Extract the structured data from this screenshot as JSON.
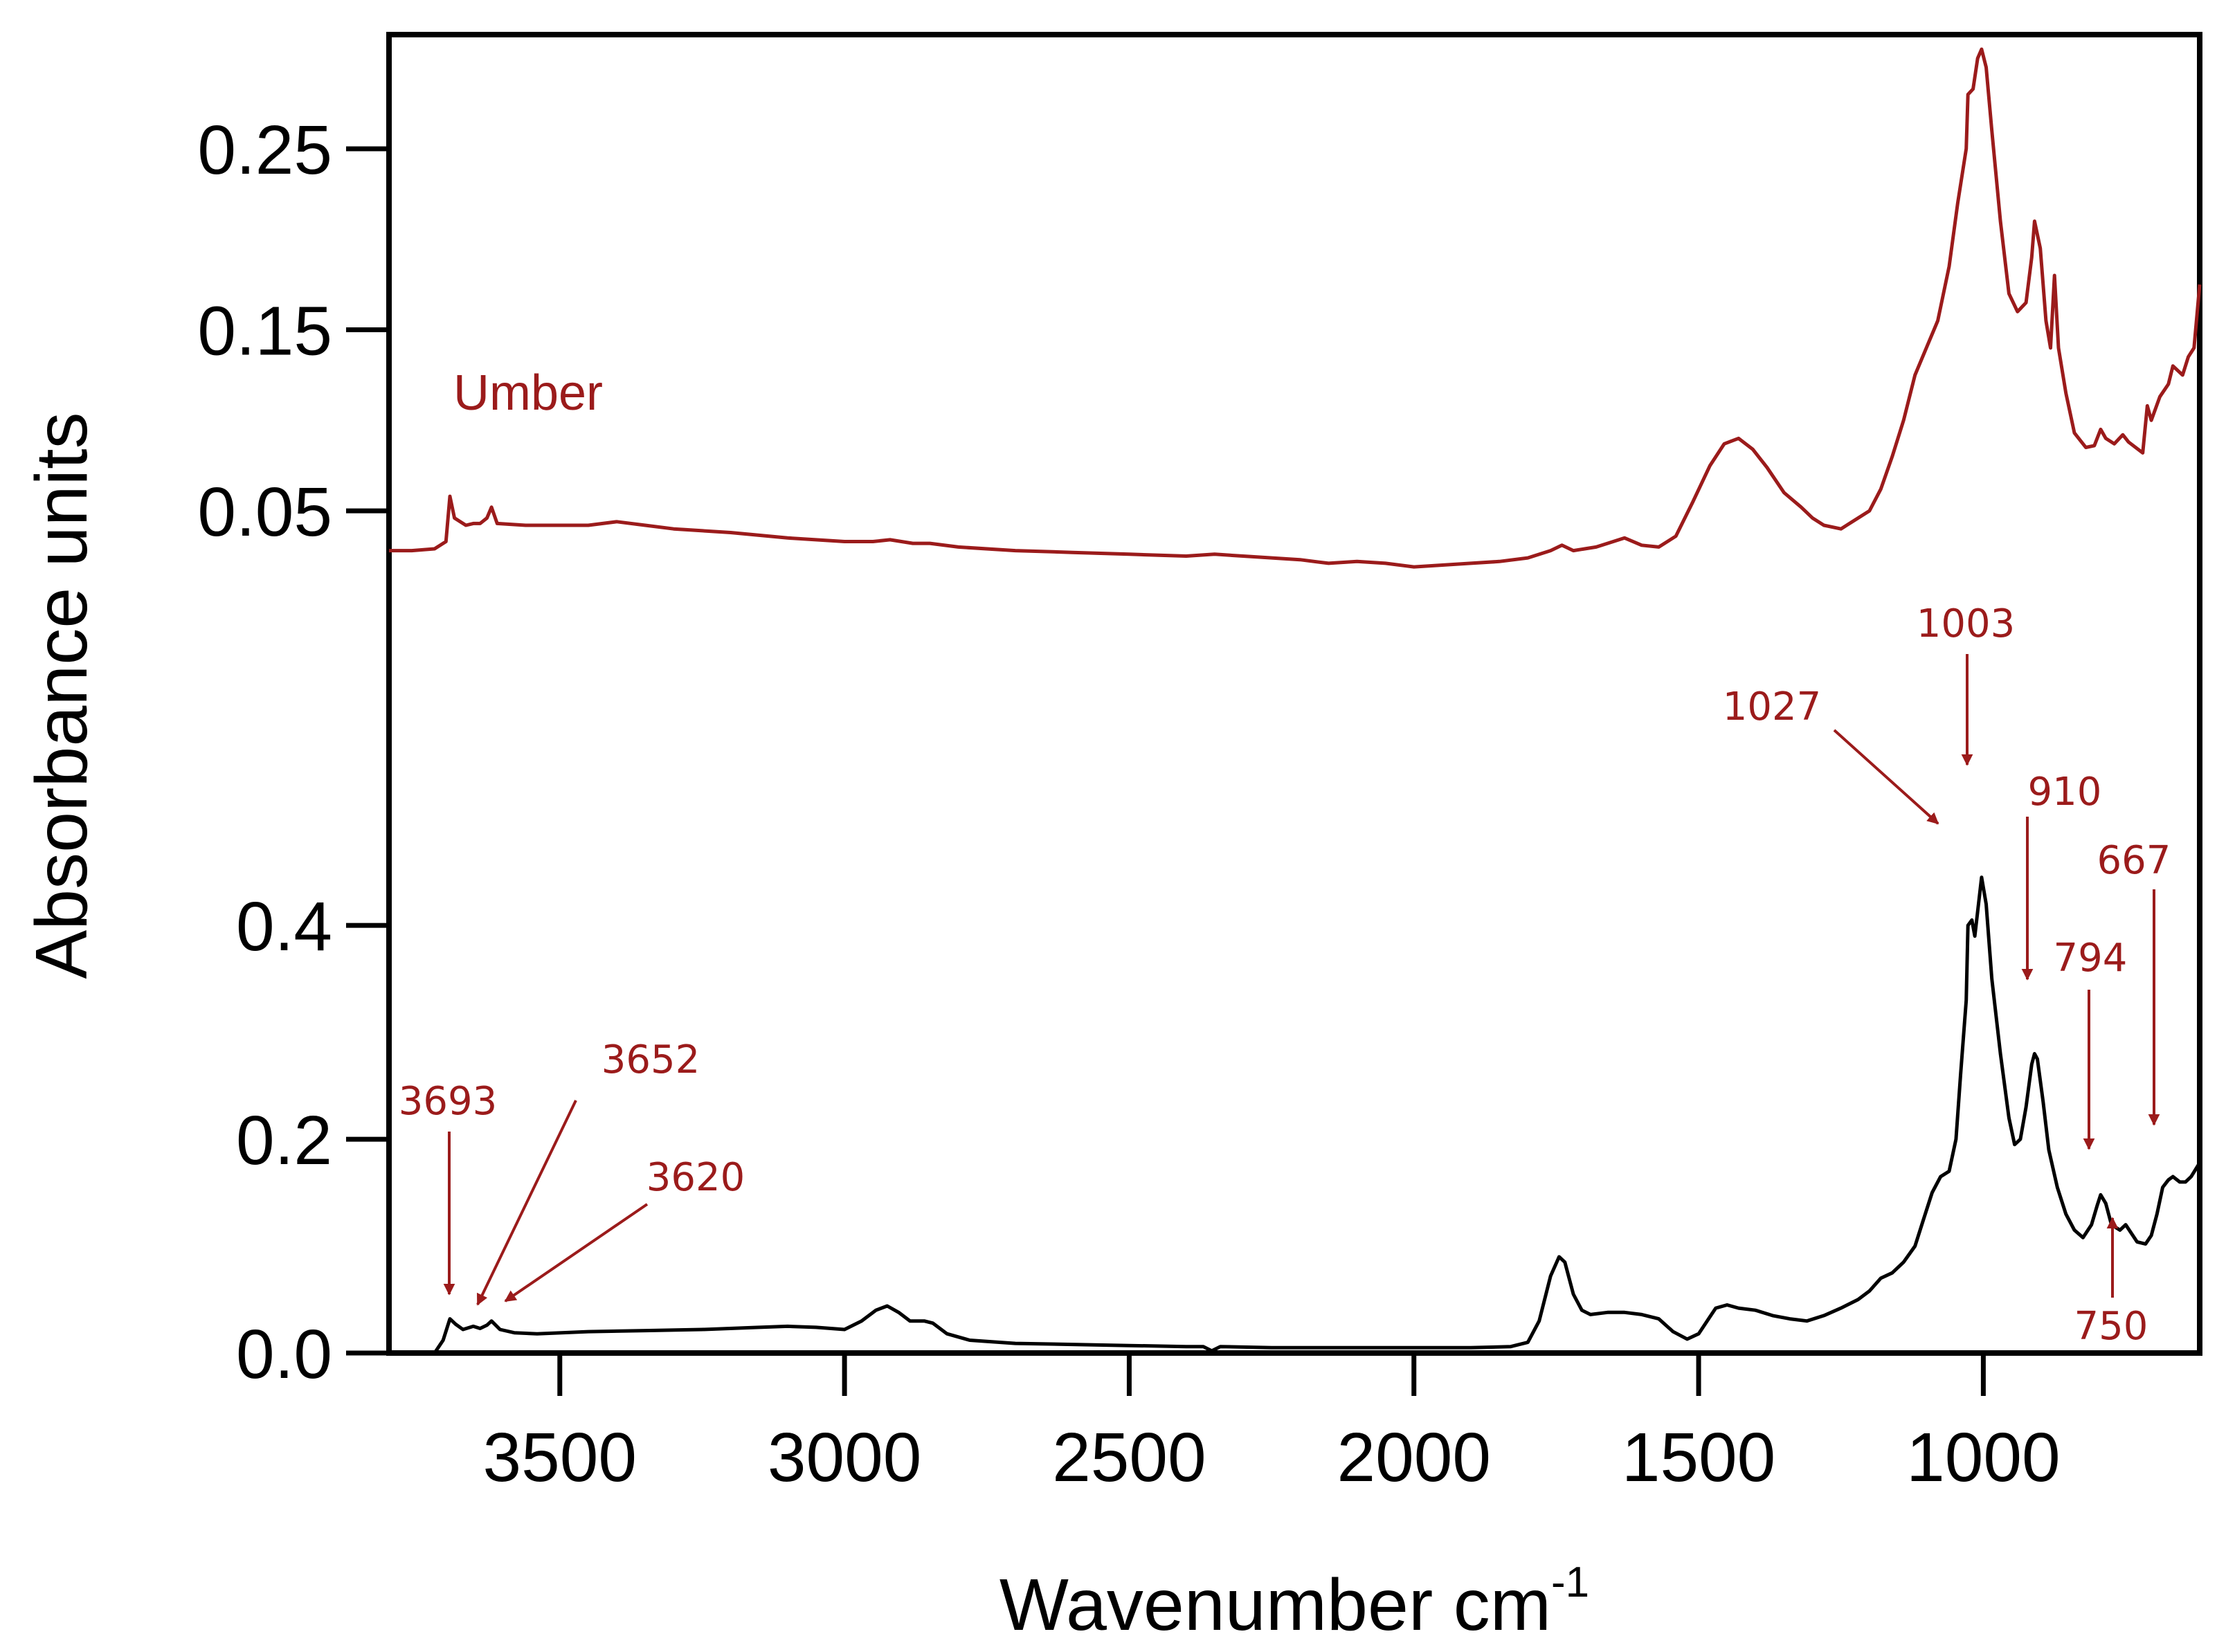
{
  "chart_data": {
    "type": "line",
    "xlabel": "Wavenumber cm",
    "xlabel_sup": "-1",
    "ylabel": "Absorbance units",
    "x_reversed": true,
    "xlim": [
      3800,
      620
    ],
    "x_ticks": [
      3500,
      3000,
      2500,
      2000,
      1500,
      1000
    ],
    "x_tick_labels": [
      "3500",
      "3000",
      "2500",
      "2000",
      "1500",
      "1000"
    ],
    "colors": {
      "umber": "#9b1b1b",
      "annotation": "#9b1b1b",
      "axis": "#000000"
    },
    "panels": [
      {
        "name": "upper",
        "ylim": [
          -0.01,
          0.31
        ],
        "y_ticks": [
          0.05,
          0.15,
          0.25
        ],
        "y_tick_labels": [
          "0.05",
          "0.15",
          "0.25"
        ],
        "series": [
          {
            "name": "Umber",
            "color": "#9b1b1b",
            "points": [
              [
                3800,
                0.028
              ],
              [
                3760,
                0.028
              ],
              [
                3720,
                0.029
              ],
              [
                3700,
                0.033
              ],
              [
                3693,
                0.058
              ],
              [
                3685,
                0.046
              ],
              [
                3665,
                0.042
              ],
              [
                3652,
                0.043
              ],
              [
                3640,
                0.043
              ],
              [
                3628,
                0.046
              ],
              [
                3620,
                0.052
              ],
              [
                3610,
                0.043
              ],
              [
                3560,
                0.042
              ],
              [
                3500,
                0.042
              ],
              [
                3450,
                0.042
              ],
              [
                3400,
                0.044
              ],
              [
                3350,
                0.042
              ],
              [
                3300,
                0.04
              ],
              [
                3200,
                0.038
              ],
              [
                3100,
                0.035
              ],
              [
                3000,
                0.033
              ],
              [
                2950,
                0.033
              ],
              [
                2920,
                0.034
              ],
              [
                2880,
                0.032
              ],
              [
                2850,
                0.032
              ],
              [
                2800,
                0.03
              ],
              [
                2700,
                0.028
              ],
              [
                2600,
                0.027
              ],
              [
                2500,
                0.026
              ],
              [
                2400,
                0.025
              ],
              [
                2350,
                0.026
              ],
              [
                2300,
                0.025
              ],
              [
                2200,
                0.023
              ],
              [
                2150,
                0.021
              ],
              [
                2100,
                0.022
              ],
              [
                2050,
                0.021
              ],
              [
                2000,
                0.019
              ],
              [
                1950,
                0.02
              ],
              [
                1900,
                0.021
              ],
              [
                1850,
                0.022
              ],
              [
                1800,
                0.024
              ],
              [
                1760,
                0.028
              ],
              [
                1740,
                0.031
              ],
              [
                1720,
                0.028
              ],
              [
                1700,
                0.029
              ],
              [
                1680,
                0.03
              ],
              [
                1660,
                0.032
              ],
              [
                1630,
                0.035
              ],
              [
                1600,
                0.031
              ],
              [
                1570,
                0.03
              ],
              [
                1540,
                0.036
              ],
              [
                1510,
                0.055
              ],
              [
                1480,
                0.075
              ],
              [
                1455,
                0.087
              ],
              [
                1430,
                0.09
              ],
              [
                1405,
                0.084
              ],
              [
                1380,
                0.074
              ],
              [
                1350,
                0.06
              ],
              [
                1320,
                0.052
              ],
              [
                1300,
                0.046
              ],
              [
                1280,
                0.042
              ],
              [
                1250,
                0.04
              ],
              [
                1230,
                0.044
              ],
              [
                1200,
                0.05
              ],
              [
                1180,
                0.062
              ],
              [
                1160,
                0.08
              ],
              [
                1140,
                0.1
              ],
              [
                1120,
                0.125
              ],
              [
                1100,
                0.14
              ],
              [
                1080,
                0.155
              ],
              [
                1060,
                0.185
              ],
              [
                1045,
                0.22
              ],
              [
                1030,
                0.25
              ],
              [
                1027,
                0.28
              ],
              [
                1018,
                0.283
              ],
              [
                1010,
                0.3
              ],
              [
                1003,
                0.305
              ],
              [
                995,
                0.295
              ],
              [
                985,
                0.26
              ],
              [
                970,
                0.21
              ],
              [
                955,
                0.17
              ],
              [
                940,
                0.16
              ],
              [
                925,
                0.165
              ],
              [
                915,
                0.19
              ],
              [
                910,
                0.21
              ],
              [
                900,
                0.195
              ],
              [
                890,
                0.155
              ],
              [
                882,
                0.14
              ],
              [
                875,
                0.18
              ],
              [
                868,
                0.14
              ],
              [
                855,
                0.115
              ],
              [
                840,
                0.093
              ],
              [
                820,
                0.085
              ],
              [
                805,
                0.086
              ],
              [
                794,
                0.095
              ],
              [
                785,
                0.09
              ],
              [
                770,
                0.087
              ],
              [
                755,
                0.092
              ],
              [
                745,
                0.088
              ],
              [
                720,
                0.082
              ],
              [
                712,
                0.108
              ],
              [
                705,
                0.1
              ],
              [
                690,
                0.113
              ],
              [
                675,
                0.12
              ],
              [
                667,
                0.13
              ],
              [
                650,
                0.125
              ],
              [
                640,
                0.135
              ],
              [
                630,
                0.14
              ],
              [
                620,
                0.175
              ]
            ]
          }
        ]
      },
      {
        "name": "lower",
        "ylim": [
          0.0,
          0.56
        ],
        "y_ticks": [
          0.0,
          0.2,
          0.4
        ],
        "y_tick_labels": [
          "0.0",
          "0.2",
          "0.4"
        ],
        "series": [
          {
            "name": "",
            "color": "#000000",
            "points": [
              [
                3800,
                0.0
              ],
              [
                3720,
                0.0
              ],
              [
                3705,
                0.012
              ],
              [
                3693,
                0.032
              ],
              [
                3683,
                0.027
              ],
              [
                3670,
                0.022
              ],
              [
                3652,
                0.025
              ],
              [
                3640,
                0.023
              ],
              [
                3628,
                0.026
              ],
              [
                3620,
                0.03
              ],
              [
                3605,
                0.022
              ],
              [
                3580,
                0.019
              ],
              [
                3540,
                0.018
              ],
              [
                3450,
                0.02
              ],
              [
                3350,
                0.021
              ],
              [
                3250,
                0.022
              ],
              [
                3150,
                0.024
              ],
              [
                3100,
                0.025
              ],
              [
                3050,
                0.024
              ],
              [
                3000,
                0.022
              ],
              [
                2970,
                0.03
              ],
              [
                2945,
                0.04
              ],
              [
                2925,
                0.044
              ],
              [
                2905,
                0.038
              ],
              [
                2885,
                0.03
              ],
              [
                2860,
                0.03
              ],
              [
                2845,
                0.028
              ],
              [
                2820,
                0.018
              ],
              [
                2780,
                0.012
              ],
              [
                2700,
                0.009
              ],
              [
                2600,
                0.008
              ],
              [
                2500,
                0.007
              ],
              [
                2400,
                0.006
              ],
              [
                2370,
                0.006
              ],
              [
                2355,
                0.002
              ],
              [
                2340,
                0.006
              ],
              [
                2250,
                0.005
              ],
              [
                2100,
                0.005
              ],
              [
                2000,
                0.005
              ],
              [
                1900,
                0.005
              ],
              [
                1830,
                0.006
              ],
              [
                1800,
                0.01
              ],
              [
                1780,
                0.03
              ],
              [
                1760,
                0.072
              ],
              [
                1745,
                0.09
              ],
              [
                1735,
                0.085
              ],
              [
                1720,
                0.055
              ],
              [
                1705,
                0.04
              ],
              [
                1690,
                0.036
              ],
              [
                1660,
                0.038
              ],
              [
                1630,
                0.038
              ],
              [
                1600,
                0.036
              ],
              [
                1570,
                0.032
              ],
              [
                1545,
                0.02
              ],
              [
                1520,
                0.013
              ],
              [
                1500,
                0.018
              ],
              [
                1485,
                0.03
              ],
              [
                1470,
                0.042
              ],
              [
                1450,
                0.045
              ],
              [
                1430,
                0.042
              ],
              [
                1400,
                0.04
              ],
              [
                1370,
                0.035
              ],
              [
                1340,
                0.032
              ],
              [
                1310,
                0.03
              ],
              [
                1280,
                0.035
              ],
              [
                1250,
                0.042
              ],
              [
                1220,
                0.05
              ],
              [
                1200,
                0.058
              ],
              [
                1180,
                0.07
              ],
              [
                1160,
                0.075
              ],
              [
                1140,
                0.085
              ],
              [
                1120,
                0.1
              ],
              [
                1105,
                0.125
              ],
              [
                1090,
                0.15
              ],
              [
                1075,
                0.165
              ],
              [
                1060,
                0.17
              ],
              [
                1048,
                0.2
              ],
              [
                1040,
                0.26
              ],
              [
                1030,
                0.33
              ],
              [
                1027,
                0.4
              ],
              [
                1020,
                0.405
              ],
              [
                1015,
                0.39
              ],
              [
                1003,
                0.445
              ],
              [
                995,
                0.42
              ],
              [
                985,
                0.35
              ],
              [
                970,
                0.28
              ],
              [
                955,
                0.22
              ],
              [
                945,
                0.195
              ],
              [
                935,
                0.2
              ],
              [
                925,
                0.23
              ],
              [
                915,
                0.27
              ],
              [
                910,
                0.28
              ],
              [
                905,
                0.275
              ],
              [
                895,
                0.235
              ],
              [
                885,
                0.19
              ],
              [
                870,
                0.155
              ],
              [
                855,
                0.13
              ],
              [
                840,
                0.115
              ],
              [
                825,
                0.108
              ],
              [
                810,
                0.12
              ],
              [
                800,
                0.138
              ],
              [
                794,
                0.148
              ],
              [
                785,
                0.14
              ],
              [
                775,
                0.12
              ],
              [
                760,
                0.115
              ],
              [
                750,
                0.12
              ],
              [
                740,
                0.112
              ],
              [
                730,
                0.104
              ],
              [
                715,
                0.102
              ],
              [
                705,
                0.11
              ],
              [
                695,
                0.13
              ],
              [
                685,
                0.155
              ],
              [
                675,
                0.162
              ],
              [
                667,
                0.165
              ],
              [
                655,
                0.16
              ],
              [
                645,
                0.16
              ],
              [
                635,
                0.165
              ],
              [
                620,
                0.178
              ]
            ]
          }
        ]
      }
    ],
    "series_label": {
      "text": "Umber",
      "color": "#9b1b1b"
    },
    "annotations": [
      {
        "label": "3693",
        "arrow": "down"
      },
      {
        "label": "3652",
        "arrow": "diagonal"
      },
      {
        "label": "3620",
        "arrow": "diagonal"
      },
      {
        "label": "1027",
        "arrow": "diagonal"
      },
      {
        "label": "1003",
        "arrow": "down"
      },
      {
        "label": "910",
        "arrow": "down"
      },
      {
        "label": "794",
        "arrow": "down"
      },
      {
        "label": "667",
        "arrow": "down"
      },
      {
        "label": "750",
        "arrow": "up"
      }
    ]
  }
}
